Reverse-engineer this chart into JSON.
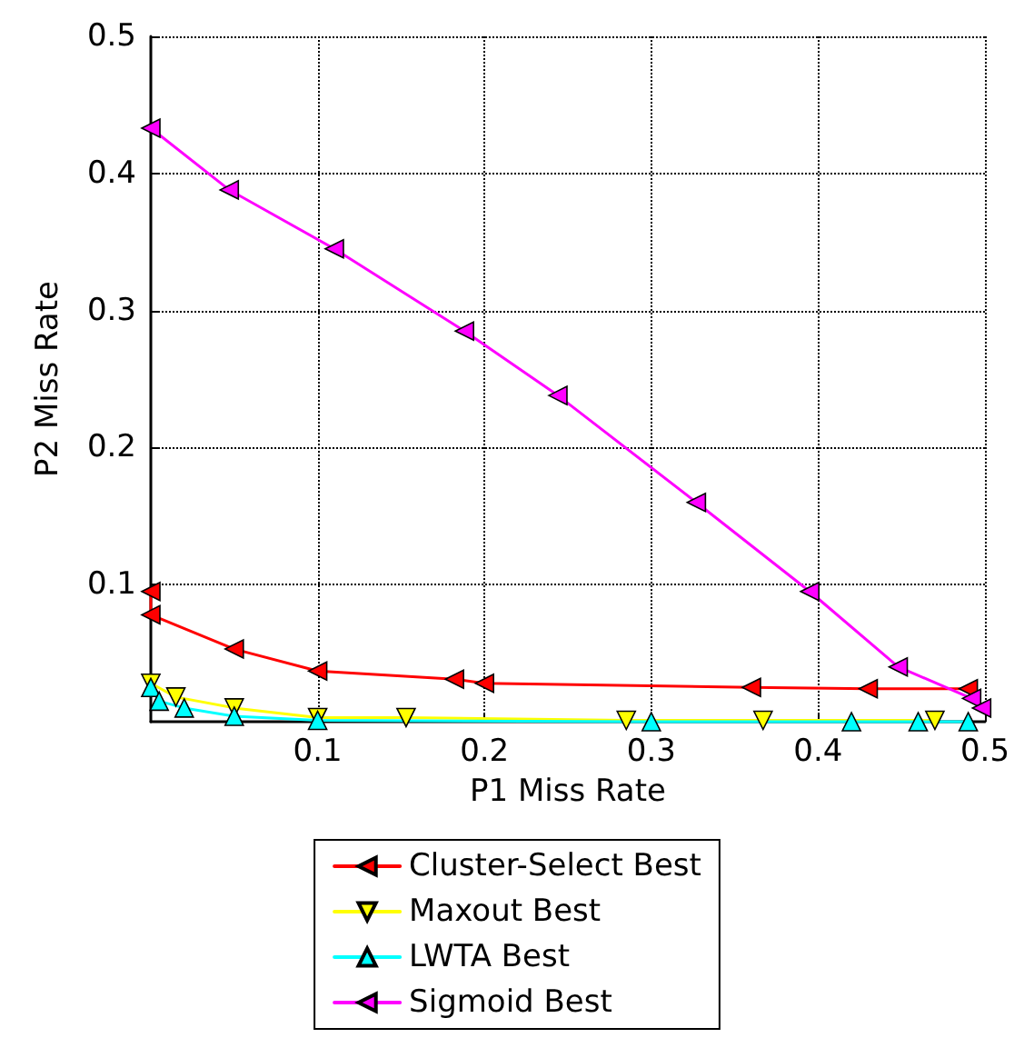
{
  "chart_data": {
    "type": "line",
    "xlabel": "P1 Miss Rate",
    "ylabel": "P2 Miss Rate",
    "xlim": [
      0,
      0.5
    ],
    "ylim": [
      0,
      0.5
    ],
    "xticks": [
      0.1,
      0.2,
      0.3,
      0.4,
      0.5
    ],
    "yticks": [
      0.1,
      0.2,
      0.3,
      0.4,
      0.5
    ],
    "grid": true,
    "legend": "bottom",
    "series": [
      {
        "name": "Cluster-Select Best",
        "color": "#ff0000",
        "marker": "triangle-left",
        "x": [
          0,
          0,
          0.05,
          0.1,
          0.182,
          0.2,
          0.36,
          0.43,
          0.49
        ],
        "values": [
          0.095,
          0.078,
          0.053,
          0.037,
          0.031,
          0.028,
          0.025,
          0.024,
          0.024
        ]
      },
      {
        "name": "Maxout Best",
        "color": "#ffff00",
        "marker": "triangle-down",
        "x": [
          0,
          0.015,
          0.05,
          0.1,
          0.153,
          0.285,
          0.367,
          0.47
        ],
        "values": [
          0.028,
          0.018,
          0.01,
          0.003,
          0.003,
          0.001,
          0.001,
          0.001
        ]
      },
      {
        "name": "LWTA Best",
        "color": "#00ffff",
        "marker": "triangle",
        "x": [
          0,
          0.005,
          0.02,
          0.05,
          0.1,
          0.3,
          0.42,
          0.46,
          0.49
        ],
        "values": [
          0.025,
          0.015,
          0.01,
          0.004,
          0.001,
          0,
          0,
          0,
          0
        ]
      },
      {
        "name": "Sigmoid Best",
        "color": "#ff00ff",
        "marker": "triangle-left",
        "x": [
          0,
          0.047,
          0.11,
          0.188,
          0.244,
          0.327,
          0.395,
          0.448,
          0.492,
          0.498
        ],
        "values": [
          0.433,
          0.388,
          0.345,
          0.285,
          0.238,
          0.16,
          0.095,
          0.04,
          0.017,
          0.01
        ]
      }
    ]
  }
}
